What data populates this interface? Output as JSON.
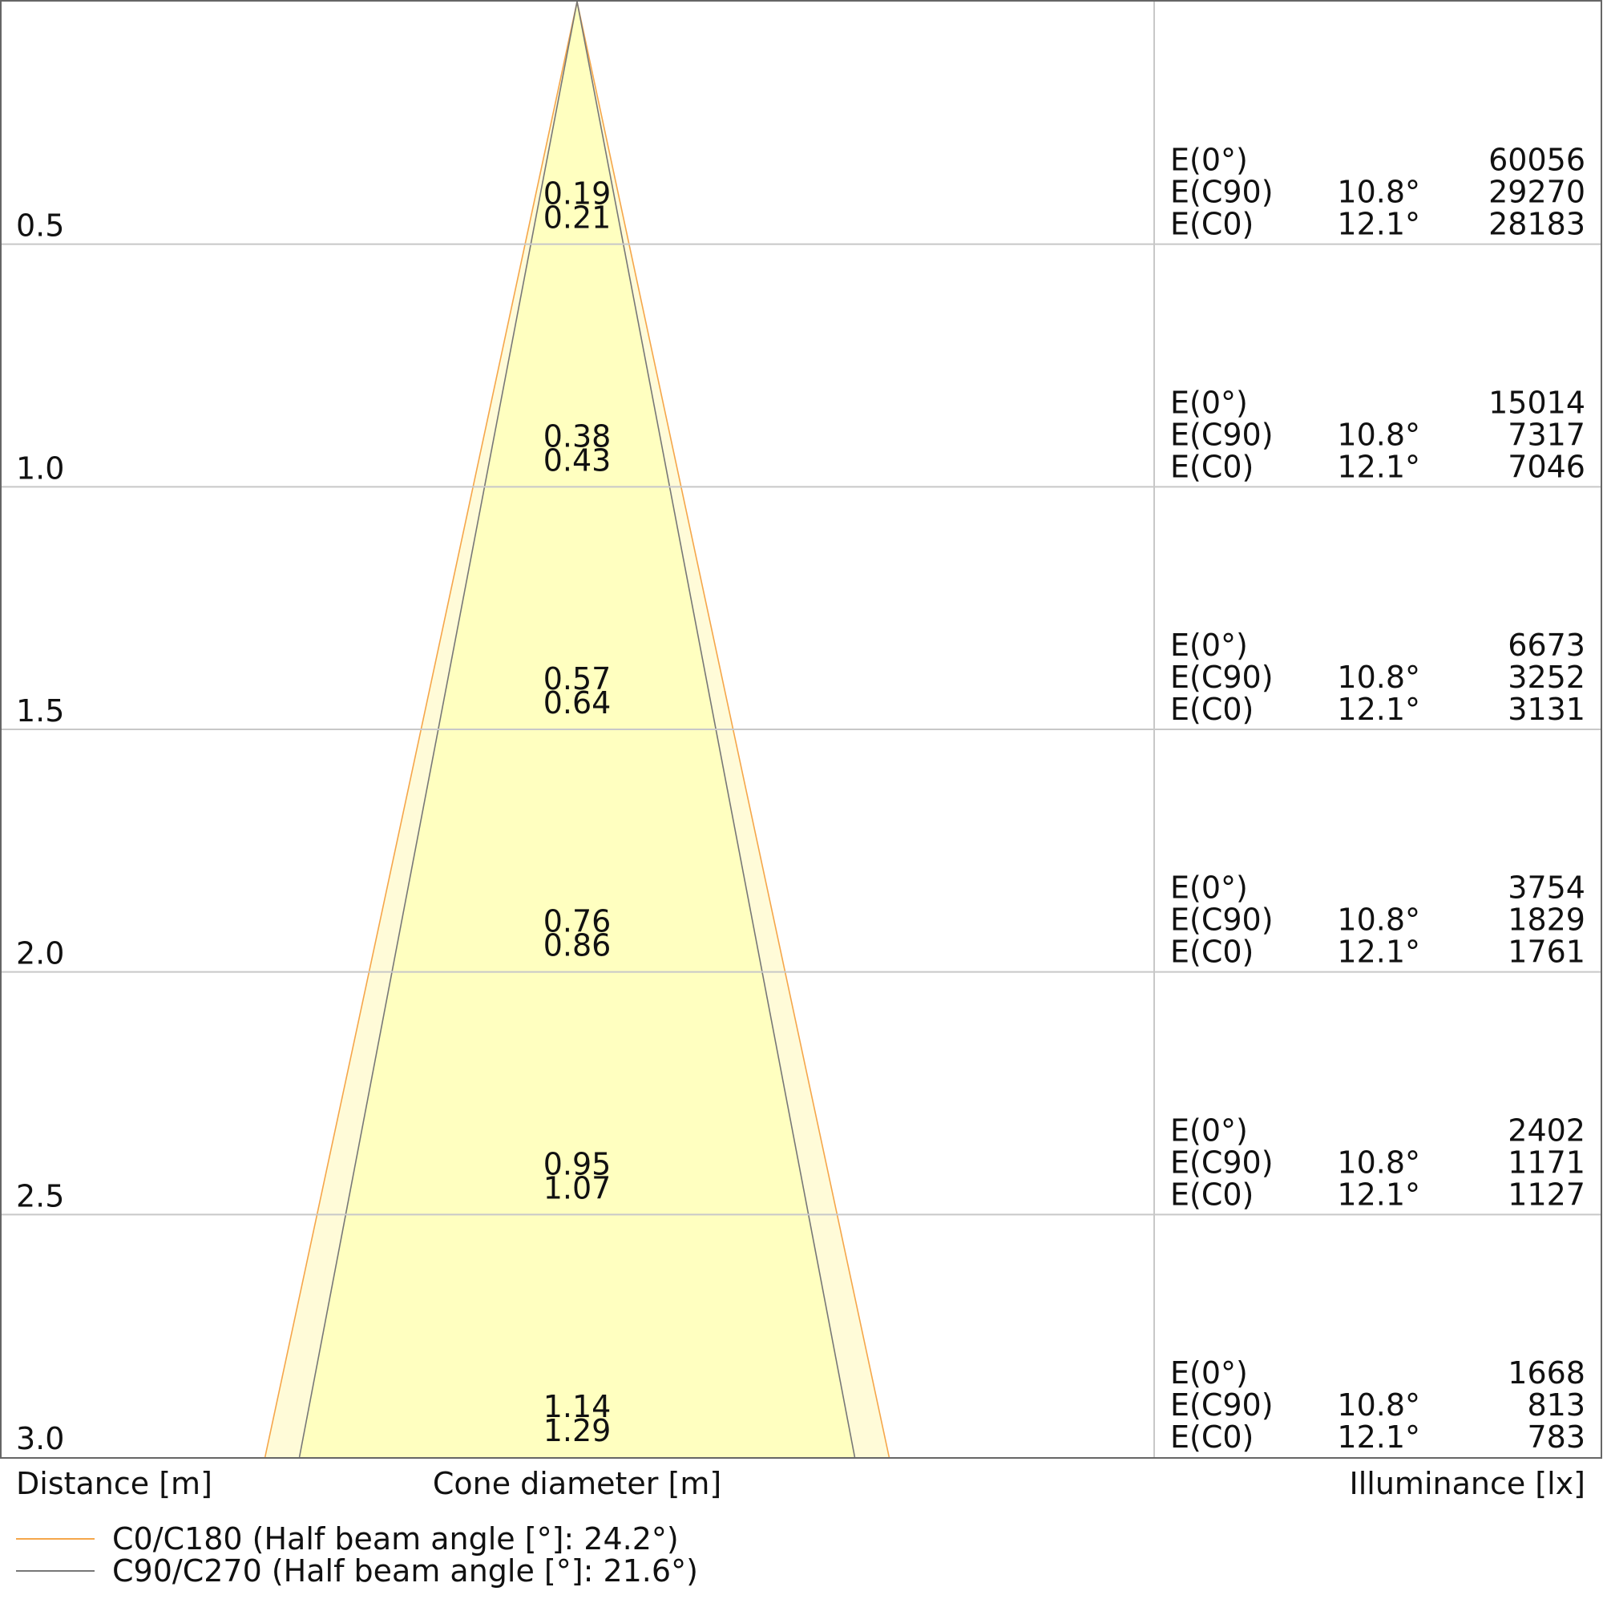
{
  "chart_data": {
    "type": "cone_diagram",
    "axis_labels": {
      "distance": "Distance [m]",
      "cone_diameter": "Cone diameter [m]",
      "illuminance": "Illuminance [lx]"
    },
    "distances": [
      "0.5",
      "1.0",
      "1.5",
      "2.0",
      "2.5",
      "3.0"
    ],
    "distance_values": [
      0.5,
      1.0,
      1.5,
      2.0,
      2.5,
      3.0
    ],
    "distance_range": [
      0,
      3.0
    ],
    "cone_diameters": [
      [
        "0.19",
        "0.21"
      ],
      [
        "0.38",
        "0.43"
      ],
      [
        "0.57",
        "0.64"
      ],
      [
        "0.76",
        "0.86"
      ],
      [
        "0.95",
        "1.07"
      ],
      [
        "1.14",
        "1.29"
      ]
    ],
    "rows": [
      "E(0°)",
      "E(C90)",
      "E(C0)"
    ],
    "angles": {
      "c90": "10.8°",
      "c0": "12.1°"
    },
    "illuminance": [
      [
        "60056",
        "29270",
        "28183"
      ],
      [
        "15014",
        "7317",
        "7046"
      ],
      [
        "6673",
        "3252",
        "3131"
      ],
      [
        "3754",
        "1829",
        "1761"
      ],
      [
        "2402",
        "1171",
        "1127"
      ],
      [
        "1668",
        "813",
        "783"
      ]
    ],
    "series": [
      {
        "name": "C0/C180 (Half beam angle [°]: 24.2°)",
        "half_angle_deg": 12.1,
        "color": "#f5a64a"
      },
      {
        "name": "C90/C270 (Half beam angle [°]: 21.6°)",
        "half_angle_deg": 10.8,
        "color": "#777777"
      }
    ],
    "cone_fill_outer": "#fffbd8",
    "cone_fill_inner": "#ffffc0",
    "grid": true,
    "legend_position": "bottom-left"
  }
}
